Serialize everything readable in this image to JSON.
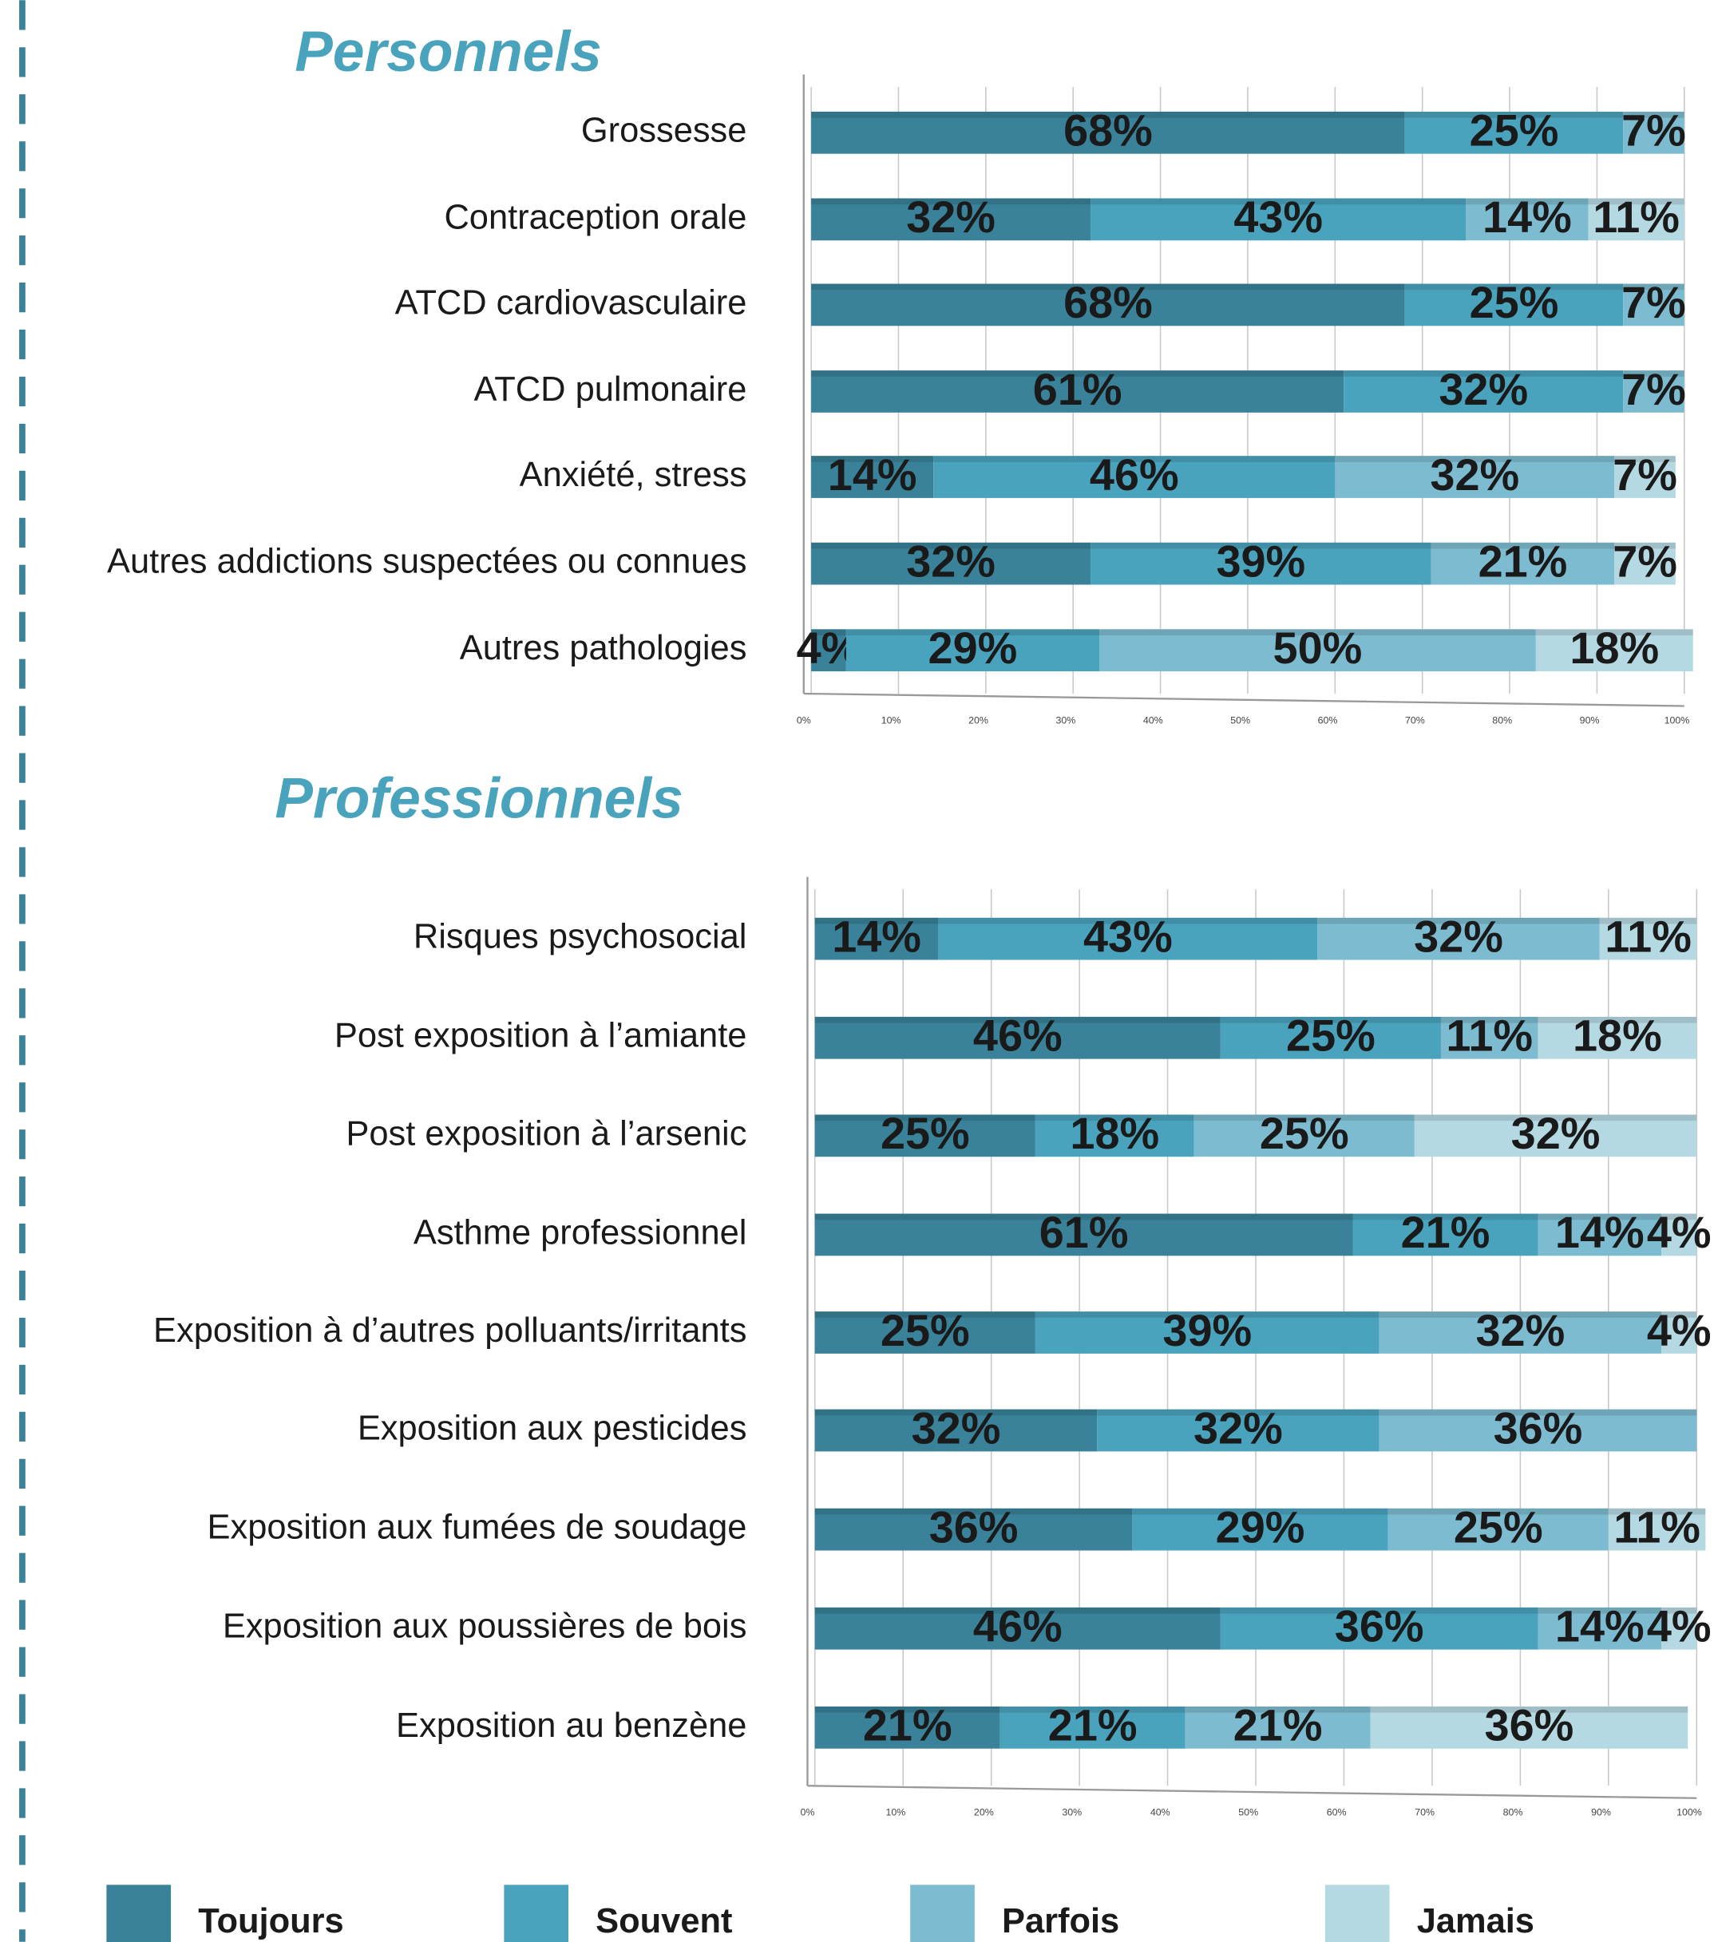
{
  "chart_data": [
    {
      "type": "stacked-barh",
      "title": "Personnels",
      "categories": [
        "Grossesse",
        "Contraception orale",
        "ATCD cardiovasculaire",
        "ATCD pulmonaire",
        "Anxiété, stress",
        "Autres addictions suspectées ou connues",
        "Autres pathologies"
      ],
      "series": [
        {
          "name": "Toujours",
          "color": "#3a8299",
          "values": [
            68,
            32,
            68,
            61,
            14,
            32,
            4
          ],
          "value_labels": [
            "68%",
            "32%",
            "68%",
            "61%",
            "14%",
            "32%",
            "4%"
          ]
        },
        {
          "name": "Souvent",
          "color": "#4aa3bd",
          "values": [
            25,
            43,
            25,
            32,
            46,
            39,
            29
          ],
          "value_labels": [
            "25%",
            "43%",
            "25%",
            "32%",
            "46%",
            "39%",
            "29%"
          ]
        },
        {
          "name": "Parfois",
          "color": "#7dbcd0",
          "values": [
            7,
            14,
            7,
            7,
            32,
            21,
            50
          ],
          "value_labels": [
            "7%",
            "14%",
            "7%",
            "7%",
            "32%",
            "21%",
            "50%"
          ]
        },
        {
          "name": "Jamais",
          "color": "#b5d9e3",
          "values": [
            0,
            11,
            0,
            0,
            7,
            7,
            18
          ],
          "value_labels": [
            null,
            "11%",
            null,
            null,
            "7%",
            "7%",
            "18%"
          ]
        }
      ],
      "xlim": [
        0,
        100
      ],
      "xticks": [
        {
          "value": 0,
          "label": "0%"
        },
        {
          "value": 10,
          "label": "10%"
        },
        {
          "value": 20,
          "label": "20%"
        },
        {
          "value": 30,
          "label": "30%"
        },
        {
          "value": 40,
          "label": "40%"
        },
        {
          "value": 50,
          "label": "50%"
        },
        {
          "value": 60,
          "label": "60%"
        },
        {
          "value": 70,
          "label": "70%"
        },
        {
          "value": 80,
          "label": "80%"
        },
        {
          "value": 90,
          "label": "90%"
        },
        {
          "value": 100,
          "label": "100%"
        }
      ],
      "grid": true
    },
    {
      "type": "stacked-barh",
      "title": "Professionnels",
      "categories": [
        "Risques psychosocial",
        "Post exposition à l’amiante",
        "Post exposition à l’arsenic",
        "Asthme  professionnel",
        "Exposition à d’autres polluants/irritants",
        "Exposition aux pesticides",
        "Exposition aux fumées de soudage",
        "Exposition aux poussières de bois",
        "Exposition au benzène"
      ],
      "series": [
        {
          "name": "Toujours",
          "color": "#3a8299",
          "values": [
            14,
            46,
            25,
            61,
            25,
            32,
            36,
            46,
            21
          ],
          "value_labels": [
            "14%",
            "46%",
            "25%",
            "61%",
            "25%",
            "32%",
            "36%",
            "46%",
            "21%"
          ]
        },
        {
          "name": "Souvent",
          "color": "#4aa3bd",
          "values": [
            43,
            25,
            18,
            21,
            39,
            32,
            29,
            36,
            21
          ],
          "value_labels": [
            "43%",
            "25%",
            "18%",
            "21%",
            "39%",
            "32%",
            "29%",
            "36%",
            "21%"
          ]
        },
        {
          "name": "Parfois",
          "color": "#7dbcd0",
          "values": [
            32,
            11,
            25,
            14,
            32,
            36,
            25,
            14,
            21
          ],
          "value_labels": [
            "32%",
            "11%",
            "25%",
            "14%",
            "32%",
            "36%",
            "25%",
            "14%",
            "21%"
          ]
        },
        {
          "name": "Jamais",
          "color": "#b5d9e3",
          "values": [
            11,
            18,
            32,
            4,
            4,
            0,
            11,
            4,
            36
          ],
          "value_labels": [
            "11%",
            "18%",
            "32%",
            "4%",
            "4%",
            null,
            "11%",
            "4%",
            "36%"
          ]
        }
      ],
      "xlim": [
        0,
        100
      ],
      "xticks": [
        {
          "value": 0,
          "label": "0%"
        },
        {
          "value": 10,
          "label": "10%"
        },
        {
          "value": 20,
          "label": "20%"
        },
        {
          "value": 30,
          "label": "30%"
        },
        {
          "value": 40,
          "label": "40%"
        },
        {
          "value": 50,
          "label": "50%"
        },
        {
          "value": 60,
          "label": "60%"
        },
        {
          "value": 70,
          "label": "70%"
        },
        {
          "value": 80,
          "label": "80%"
        },
        {
          "value": 90,
          "label": "90%"
        },
        {
          "value": 100,
          "label": "100%"
        }
      ],
      "grid": true
    }
  ]
}
